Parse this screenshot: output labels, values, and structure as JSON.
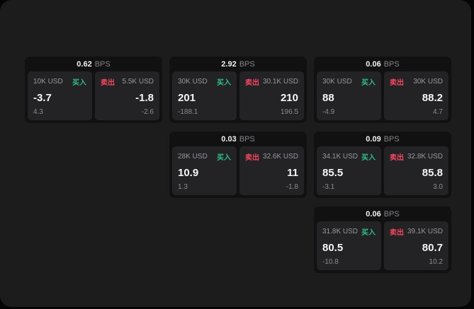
{
  "labels": {
    "bps_suffix": "BPS",
    "buy": "买入",
    "sell": "卖出"
  },
  "colors": {
    "panel_bg": "#1c1c1d",
    "card_bg": "#111112",
    "tile_bg": "#232326",
    "buy_green": "#2ebd85",
    "sell_red": "#f6465d",
    "text_primary": "#f5f5f5",
    "text_secondary": "#8b8b90"
  },
  "cards": [
    {
      "bps": "0.62",
      "row": 1,
      "col": 1,
      "buy": {
        "amount": "10K USD",
        "value": "-3.7",
        "delta": "4.3"
      },
      "sell": {
        "amount": "5.5K USD",
        "value": "-1.8",
        "delta": "-2.6"
      }
    },
    {
      "bps": "2.92",
      "row": 1,
      "col": 2,
      "buy": {
        "amount": "30K USD",
        "value": "201",
        "delta": "-188.1"
      },
      "sell": {
        "amount": "30.1K USD",
        "value": "210",
        "delta": "196.5"
      }
    },
    {
      "bps": "0.06",
      "row": 1,
      "col": 3,
      "buy": {
        "amount": "30K USD",
        "value": "88",
        "delta": "-4.9"
      },
      "sell": {
        "amount": "30K USD",
        "value": "88.2",
        "delta": "4.7"
      }
    },
    {
      "bps": "0.03",
      "row": 2,
      "col": 2,
      "buy": {
        "amount": "28K USD",
        "value": "10.9",
        "delta": "1.3"
      },
      "sell": {
        "amount": "32.6K USD",
        "value": "11",
        "delta": "-1.8"
      }
    },
    {
      "bps": "0.09",
      "row": 2,
      "col": 3,
      "buy": {
        "amount": "34.1K USD",
        "value": "85.5",
        "delta": "-3.1"
      },
      "sell": {
        "amount": "32.8K USD",
        "value": "85.8",
        "delta": "3.0"
      }
    },
    {
      "bps": "0.06",
      "row": 3,
      "col": 3,
      "buy": {
        "amount": "31.8K USD",
        "value": "80.5",
        "delta": "-10.8"
      },
      "sell": {
        "amount": "39.1K USD",
        "value": "80.7",
        "delta": "10.2"
      }
    }
  ]
}
